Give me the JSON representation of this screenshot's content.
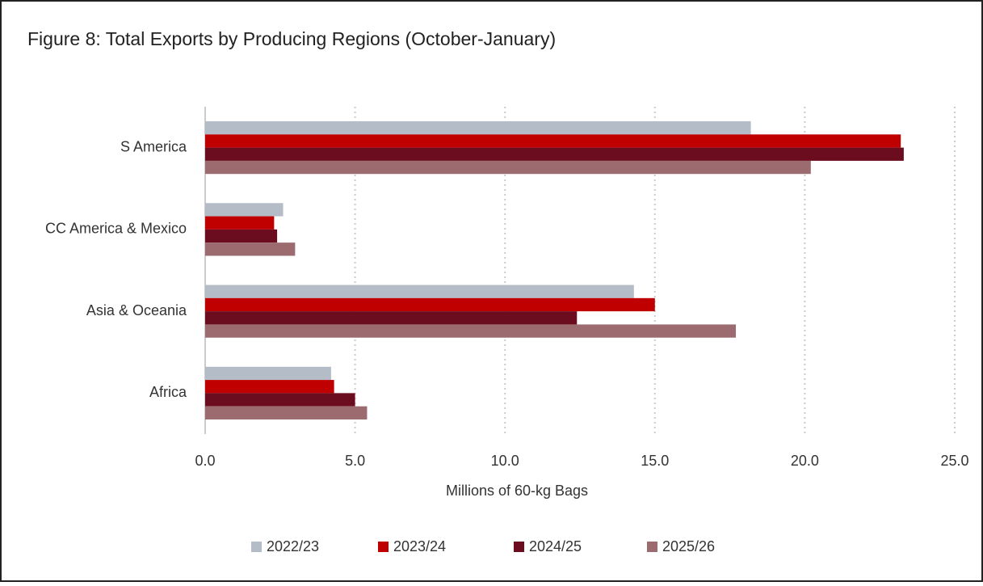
{
  "chart_data": {
    "type": "hbar",
    "title": "Figure 8: Total Exports by Producing Regions (October-January)",
    "x_label": "Millions of 60-kg Bags",
    "categories": [
      "S America",
      "CC America & Mexico",
      "Asia & Oceania",
      "Africa"
    ],
    "series": [
      {
        "name": "2022/23",
        "color": "#b4bcc8",
        "values": [
          18.2,
          2.6,
          14.3,
          4.2
        ]
      },
      {
        "name": "2023/24",
        "color": "#c00000",
        "values": [
          23.2,
          2.3,
          15.0,
          4.3
        ]
      },
      {
        "name": "2024/25",
        "color": "#6b0d1e",
        "values": [
          23.3,
          2.4,
          12.4,
          5.0
        ]
      },
      {
        "name": "2025/26",
        "color": "#9b6b6f",
        "values": [
          20.2,
          3.0,
          17.7,
          5.4
        ]
      }
    ],
    "xlim": [
      0,
      25
    ],
    "xticks": [
      {
        "value": 0,
        "label": "0.0"
      },
      {
        "value": 5,
        "label": "5.0"
      },
      {
        "value": 10,
        "label": "10.0"
      },
      {
        "value": 15,
        "label": "15.0"
      },
      {
        "value": 20,
        "label": "20.0"
      },
      {
        "value": 25,
        "label": "25.0"
      }
    ],
    "grid": true,
    "legend": "bottom"
  }
}
